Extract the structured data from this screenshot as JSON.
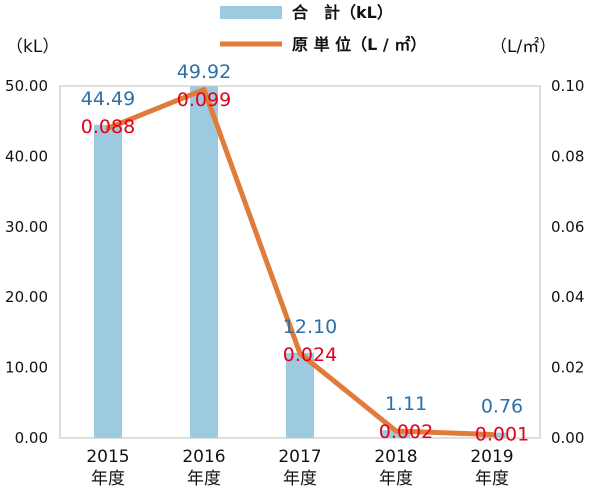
{
  "chart_data": {
    "type": "bar+line",
    "categories": [
      {
        "year": "2015",
        "suffix": "年度"
      },
      {
        "year": "2016",
        "suffix": "年度"
      },
      {
        "year": "2017",
        "suffix": "年度"
      },
      {
        "year": "2018",
        "suffix": "年度"
      },
      {
        "year": "2019",
        "suffix": "年度"
      }
    ],
    "series": [
      {
        "name": "合　計（kL）",
        "type": "bar",
        "axis": "left",
        "color": "#9ecae1",
        "label_color": "#2e6fa7",
        "values": [
          44.49,
          49.92,
          12.1,
          1.11,
          0.76
        ],
        "labels": [
          "44.49",
          "49.92",
          "12.10",
          "1.11",
          "0.76"
        ]
      },
      {
        "name": "原 単 位（L / ㎡）",
        "type": "line",
        "axis": "right",
        "color": "#e07b39",
        "label_color": "#e3001b",
        "values": [
          0.088,
          0.099,
          0.024,
          0.002,
          0.001
        ],
        "labels": [
          "0.088",
          "0.099",
          "0.024",
          "0.002",
          "0.001"
        ]
      }
    ],
    "y_left": {
      "unit": "（kL）",
      "range": [
        0,
        50
      ],
      "ticks": [
        "0.00",
        "10.00",
        "20.00",
        "30.00",
        "40.00",
        "50.00"
      ]
    },
    "y_right": {
      "unit": "（L/㎡）",
      "range": [
        0,
        0.1
      ],
      "ticks": [
        "0.00",
        "0.02",
        "0.04",
        "0.06",
        "0.08",
        "0.10"
      ]
    },
    "grid": false,
    "legend_position": "top"
  }
}
